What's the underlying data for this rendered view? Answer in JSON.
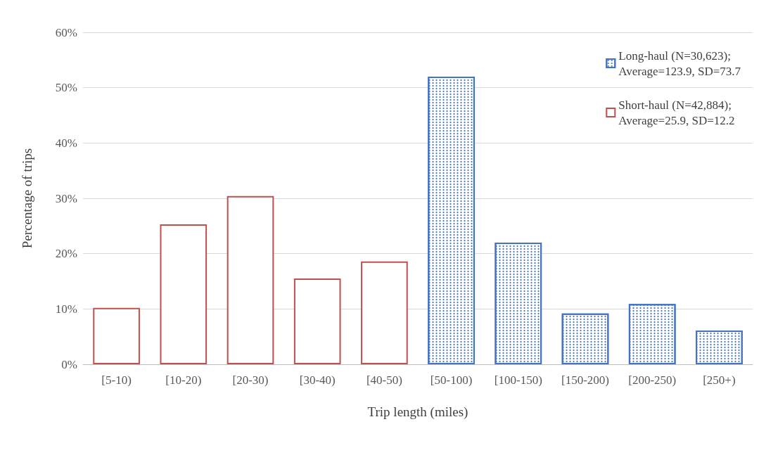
{
  "chart_data": {
    "type": "bar",
    "xlabel": "Trip length (miles)",
    "ylabel": "Percentage of trips",
    "categories": [
      "[5-10)",
      "[10-20)",
      "[20-30)",
      "[30-40)",
      "[40-50)",
      "[50-100)",
      "[100-150)",
      "[150-200)",
      "[200-250)",
      "[250+)"
    ],
    "series": [
      {
        "name": "Long-haul (N=30,623);\nAverage=123.9, SD=73.7",
        "color": "#4472c4",
        "values": [
          null,
          null,
          null,
          null,
          null,
          52,
          22,
          9.2,
          10.9,
          6.1
        ]
      },
      {
        "name": "Short-haul (N=42,884);\nAverage=25.9, SD=12.2",
        "color": "#c0504d",
        "values": [
          10.2,
          25.3,
          30.4,
          15.5,
          18.6,
          null,
          null,
          null,
          null,
          null
        ]
      }
    ],
    "ylim": [
      0,
      60
    ],
    "yticks": [
      {
        "value": 0,
        "label": "0%"
      },
      {
        "value": 10,
        "label": "10%"
      },
      {
        "value": 20,
        "label": "20%"
      },
      {
        "value": 30,
        "label": "30%"
      },
      {
        "value": 40,
        "label": "40%"
      },
      {
        "value": 50,
        "label": "50%"
      },
      {
        "value": 60,
        "label": "60%"
      }
    ],
    "grid": "y",
    "legend": "top right"
  }
}
